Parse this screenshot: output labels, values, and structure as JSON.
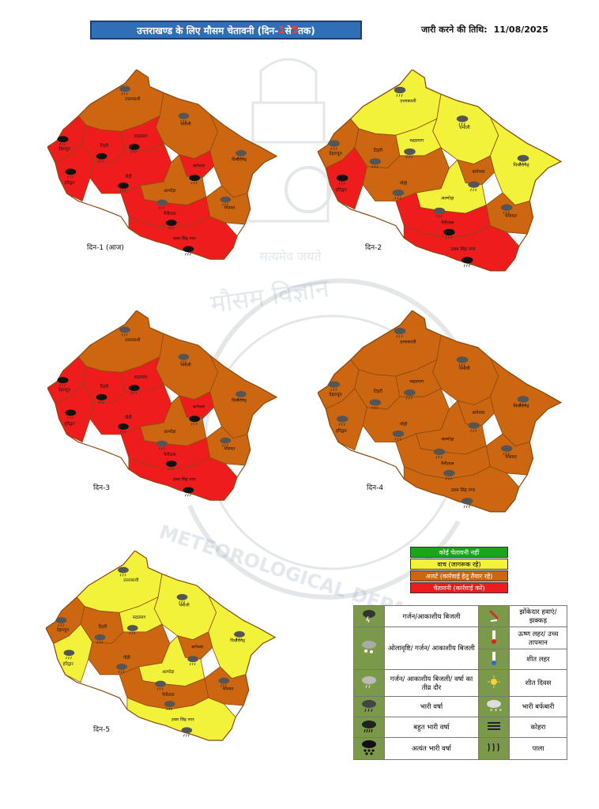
{
  "header": {
    "title_pre": "उत्तराखण्ड के लिए मौसम चेतावनी (दिन-",
    "title_num1": "1",
    "title_mid": " से ",
    "title_num2": "5",
    "title_post": " तक)",
    "issue_label": "जारी करने की तिथि:",
    "issue_date": "11/08/2025"
  },
  "watermark": {
    "motto": "सत्यमेव जयते",
    "dept_hindi": "मौसम विज्ञान",
    "dept_english": "METEOROLOGICAL DEPARTMENT"
  },
  "colors": {
    "no_warning": "#1aa61a",
    "watch": "#f2f23a",
    "alert": "#cc6611",
    "warning": "#ee1c1c",
    "border": "#8a4a10"
  },
  "days": [
    {
      "label": "दिन-1 (आज)"
    },
    {
      "label": "दिन-2"
    },
    {
      "label": "दिन-3"
    },
    {
      "label": "दिन-4"
    },
    {
      "label": "दिन-5"
    }
  ],
  "districts": {
    "uttarkashi": "उत्तरकाशी",
    "tehri": "टिहरी",
    "rudraprayag": "रुद्रप्रयाग",
    "chamoli": "चमोली",
    "pithoragarh": "पिथौरागढ़",
    "bageshwar": "बागेश्वर",
    "almora": "अल्मोड़ा",
    "nainital": "नैनीताल",
    "champawat": "चंपावत",
    "dehradun": "देहरादून",
    "haridwar": "हरिद्वार",
    "pauri": "पौड़ी",
    "usnagar": "उधम सिंह नगर"
  },
  "legend_colors": [
    {
      "label": "कोई चेतावनी नहीं",
      "color": "#1aa61a"
    },
    {
      "label": "वाच (जागरूक रहे)",
      "color": "#f2f23a"
    },
    {
      "label": "अलर्ट (कार्रवाई हेतु तैयार रहे)",
      "color": "#cc6611"
    },
    {
      "label": "चेतावनी (कार्रवाई करें)",
      "color": "#ee1c1c"
    }
  ],
  "legend_symbols": {
    "thunder": "गर्जन/आकाशीय बिजली",
    "squall": "झोंकेदार हवाएं/झक्कड़",
    "hail": "ओलावृष्टि/ गर्जन/ आकाशीय बिजली",
    "heatwave": "ऊष्ण लहर/ उच्च तापमान",
    "coldwave": "शीत लहर",
    "thunder_spell": "गर्जन/ आकाशीय बिजली/ वर्षा का तीव्र दौर",
    "coldday": "शीत दिवस",
    "heavy_rain": "भारी वर्षा",
    "heavy_snow": "भारी बर्फबारी",
    "very_heavy_rain": "बहुत भारी वर्षा",
    "fog": "कोहरा",
    "extreme_rain": "अत्यंत भारी वर्षा",
    "frost": "पाला"
  }
}
